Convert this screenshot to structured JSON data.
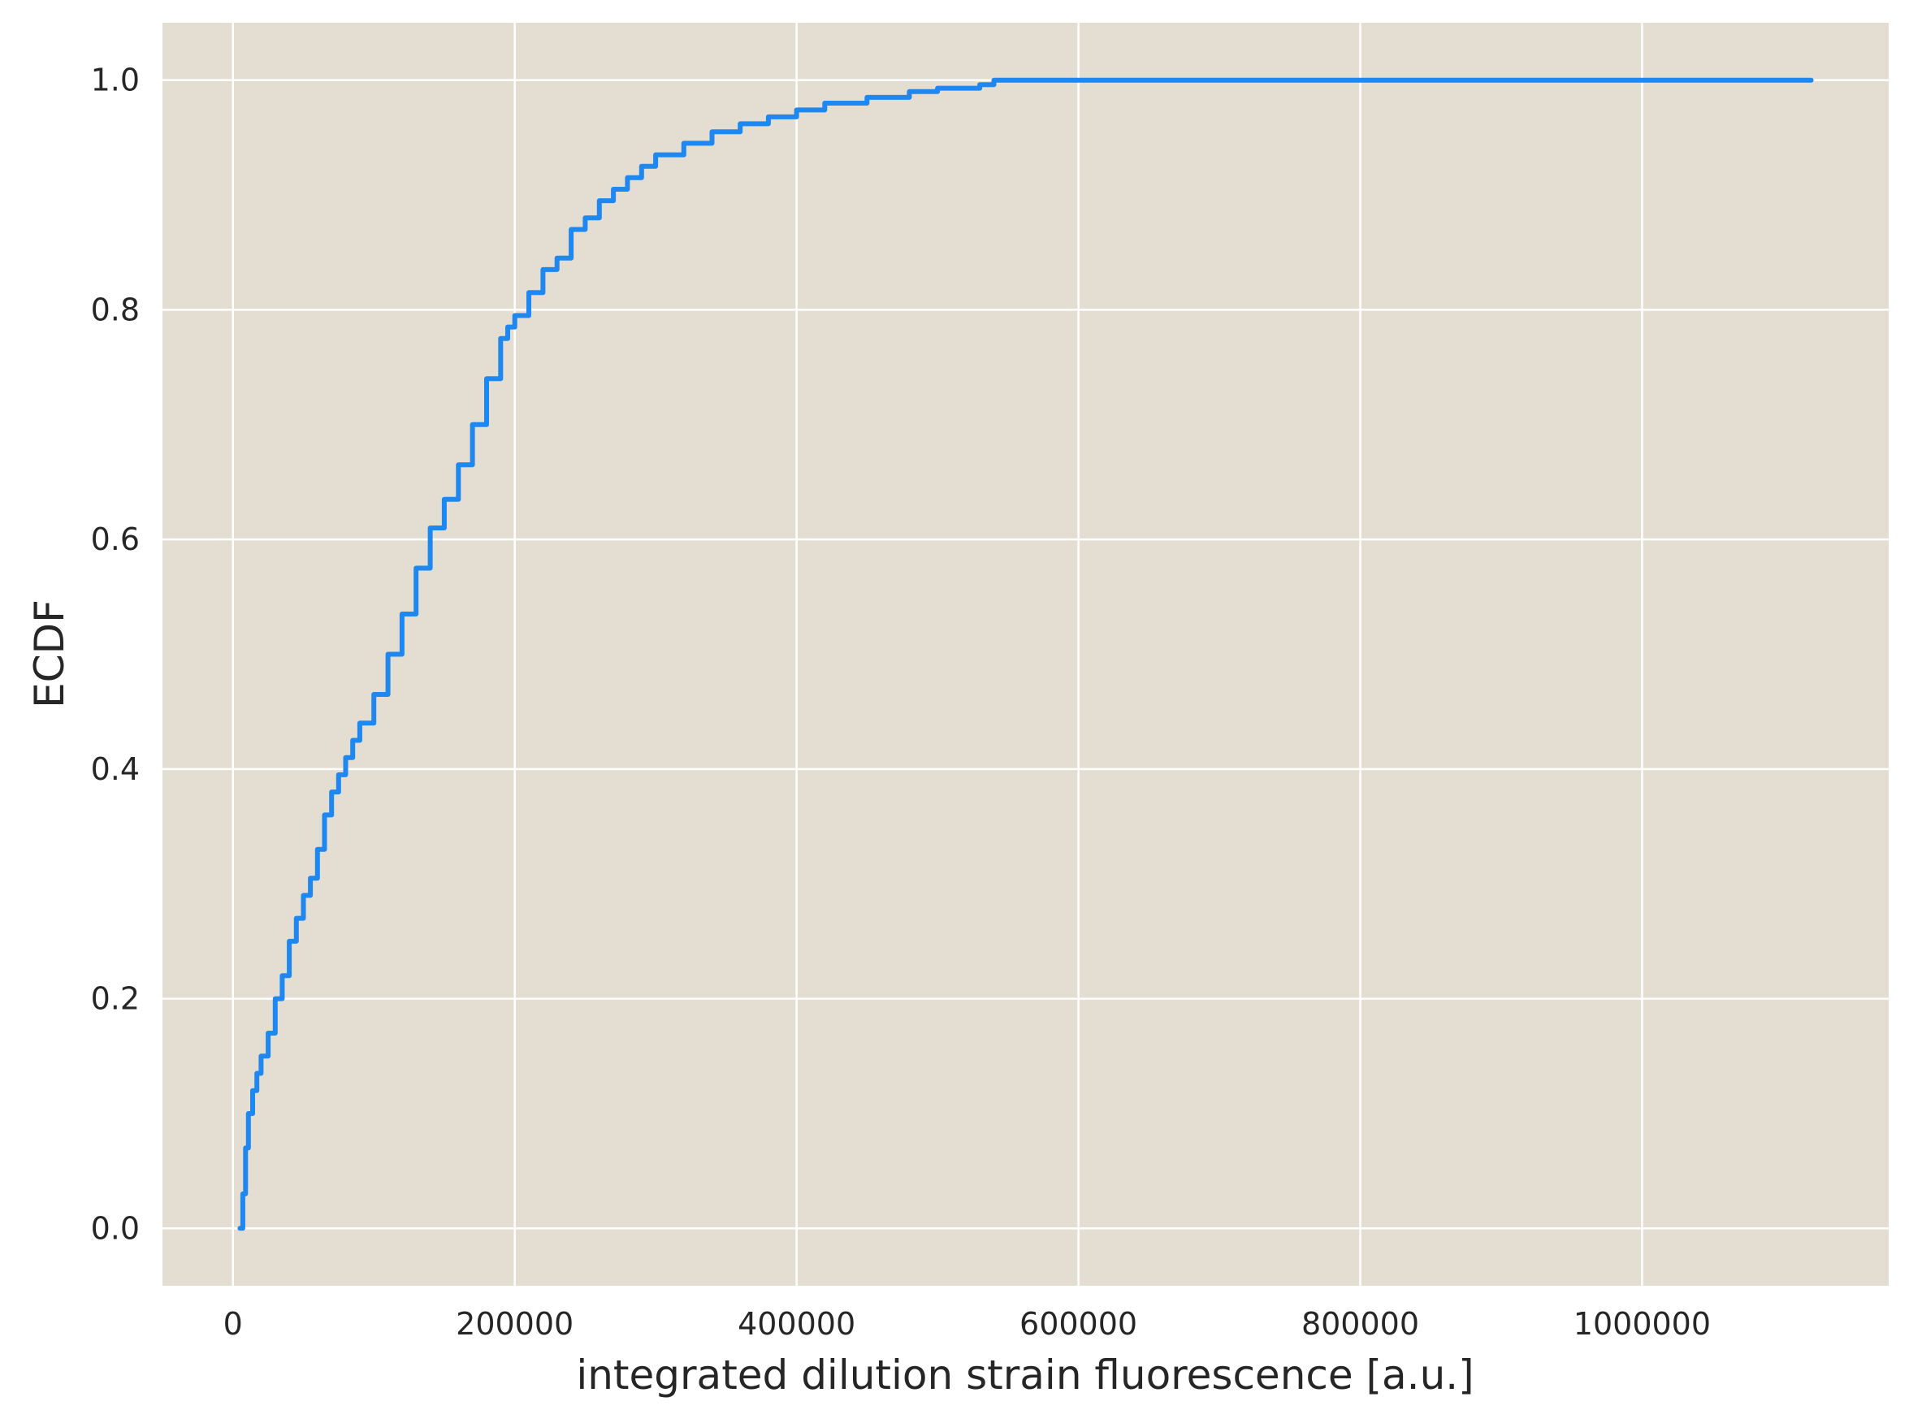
{
  "chart_data": {
    "type": "line",
    "step": true,
    "xlabel": "integrated dilution strain fluorescence [a.u.]",
    "ylabel": "ECDF",
    "xlim": [
      -50000,
      1175000
    ],
    "ylim": [
      -0.05,
      1.05
    ],
    "xticks": [
      0,
      200000,
      400000,
      600000,
      800000,
      1000000
    ],
    "xtick_labels": [
      "0",
      "200000",
      "400000",
      "600000",
      "800000",
      "1000000"
    ],
    "yticks": [
      0.0,
      0.2,
      0.4,
      0.6,
      0.8,
      1.0
    ],
    "ytick_labels": [
      "0.0",
      "0.2",
      "0.4",
      "0.6",
      "0.8",
      "1.0"
    ],
    "grid": true,
    "colors": {
      "plot_background": "#e3ddd2",
      "grid": "#ffffff",
      "line": "#1e88f0"
    },
    "series": [
      {
        "x": [
          5000,
          7000,
          9000,
          11000,
          14000,
          17000,
          20000,
          25000,
          30000,
          35000,
          40000,
          45000,
          50000,
          55000,
          60000,
          65000,
          70000,
          75000,
          80000,
          85000,
          90000,
          100000,
          110000,
          120000,
          130000,
          140000,
          150000,
          160000,
          170000,
          180000,
          190000,
          195000,
          200000,
          210000,
          220000,
          230000,
          240000,
          250000,
          260000,
          270000,
          280000,
          290000,
          300000,
          320000,
          340000,
          360000,
          380000,
          400000,
          420000,
          450000,
          480000,
          500000,
          530000,
          540000,
          1120000
        ],
        "y": [
          0.0,
          0.03,
          0.07,
          0.1,
          0.12,
          0.135,
          0.15,
          0.17,
          0.2,
          0.22,
          0.25,
          0.27,
          0.29,
          0.305,
          0.33,
          0.36,
          0.38,
          0.395,
          0.41,
          0.425,
          0.44,
          0.465,
          0.5,
          0.535,
          0.575,
          0.61,
          0.635,
          0.665,
          0.7,
          0.74,
          0.775,
          0.785,
          0.795,
          0.815,
          0.835,
          0.845,
          0.87,
          0.88,
          0.895,
          0.905,
          0.915,
          0.925,
          0.935,
          0.945,
          0.955,
          0.962,
          0.968,
          0.974,
          0.98,
          0.985,
          0.99,
          0.993,
          0.996,
          1.0,
          1.0
        ]
      }
    ]
  }
}
